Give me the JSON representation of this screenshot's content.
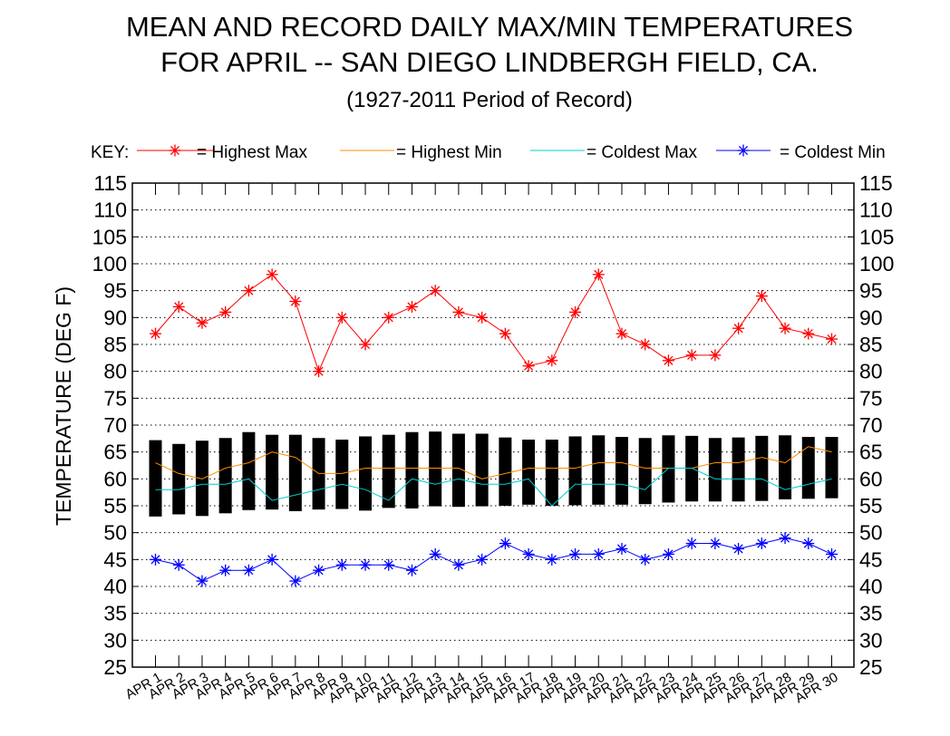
{
  "chart_data": {
    "type": "bar",
    "title": "MEAN AND RECORD DAILY MAX/MIN TEMPERATURES",
    "title_line2": "FOR APRIL -- SAN DIEGO LINDBERGH FIELD, CA.",
    "subtitle": "(1927-2011 Period of Record)",
    "ylabel": "TEMPERATURE (DEG F)",
    "key_label": "KEY:",
    "ylim": [
      25,
      115
    ],
    "yticks": [
      "25",
      "30",
      "35",
      "40",
      "45",
      "50",
      "55",
      "60",
      "65",
      "70",
      "75",
      "80",
      "85",
      "90",
      "95",
      "100",
      "105",
      "110",
      "115"
    ],
    "grid": true,
    "legend_position": "top",
    "categories": [
      "APR 1",
      "APR 2",
      "APR 3",
      "APR 4",
      "APR 5",
      "APR 6",
      "APR 7",
      "APR 8",
      "APR 9",
      "APR 10",
      "APR 11",
      "APR 12",
      "APR 13",
      "APR 14",
      "APR 15",
      "APR 16",
      "APR 17",
      "APR 18",
      "APR 19",
      "APR 20",
      "APR 21",
      "APR 22",
      "APR 23",
      "APR 24",
      "APR 25",
      "APR 26",
      "APR 27",
      "APR 28",
      "APR 29",
      "APR 30"
    ],
    "mean_max": [
      67.2,
      66.5,
      67.1,
      67.6,
      68.7,
      68.2,
      68.2,
      67.6,
      67.3,
      67.9,
      68.2,
      68.7,
      68.8,
      68.4,
      68.4,
      67.7,
      67.3,
      67.3,
      67.9,
      68.1,
      67.8,
      67.6,
      68.1,
      68.0,
      67.6,
      67.7,
      68.0,
      68.1,
      67.8,
      67.8
    ],
    "mean_min": [
      53.0,
      53.4,
      53.1,
      53.6,
      54.2,
      54.3,
      54.0,
      54.3,
      54.4,
      54.1,
      54.6,
      54.5,
      54.9,
      54.8,
      54.9,
      55.0,
      55.2,
      55.0,
      55.1,
      55.2,
      55.2,
      55.3,
      55.6,
      55.8,
      55.8,
      55.8,
      55.9,
      56.2,
      56.3,
      56.4
    ],
    "colors": {
      "highest_max": "#ff0000",
      "highest_min": "#ff8c00",
      "coldest_max": "#00cccc",
      "coldest_min": "#0000ff",
      "bars": "#000000"
    },
    "series": [
      {
        "name": "= Highest Max",
        "marker": "star",
        "values": [
          87,
          92,
          89,
          91,
          95,
          98,
          93,
          80,
          90,
          85,
          90,
          92,
          95,
          91,
          90,
          87,
          81,
          82,
          91,
          98,
          87,
          85,
          82,
          83,
          83,
          88,
          94,
          88,
          87,
          86
        ]
      },
      {
        "name": "= Highest Min",
        "marker": "none",
        "values": [
          63,
          61,
          60,
          62,
          63,
          65,
          64,
          61,
          61,
          62,
          62,
          62,
          62,
          62,
          60,
          61,
          62,
          62,
          62,
          63,
          63,
          62,
          62,
          62,
          63,
          63,
          64,
          63,
          66,
          65
        ]
      },
      {
        "name": "= Coldest Max",
        "marker": "none",
        "values": [
          58,
          58,
          59,
          59,
          60,
          56,
          57,
          58,
          59,
          58,
          56,
          60,
          59,
          60,
          59,
          59,
          60,
          55,
          59,
          59,
          59,
          58,
          62,
          62,
          60,
          60,
          60,
          58,
          59,
          60
        ]
      },
      {
        "name": "= Coldest Min",
        "marker": "star",
        "values": [
          45,
          44,
          41,
          43,
          43,
          45,
          41,
          43,
          44,
          44,
          44,
          43,
          46,
          44,
          45,
          48,
          46,
          45,
          46,
          46,
          47,
          45,
          46,
          48,
          48,
          47,
          48,
          49,
          48,
          46
        ]
      }
    ]
  }
}
